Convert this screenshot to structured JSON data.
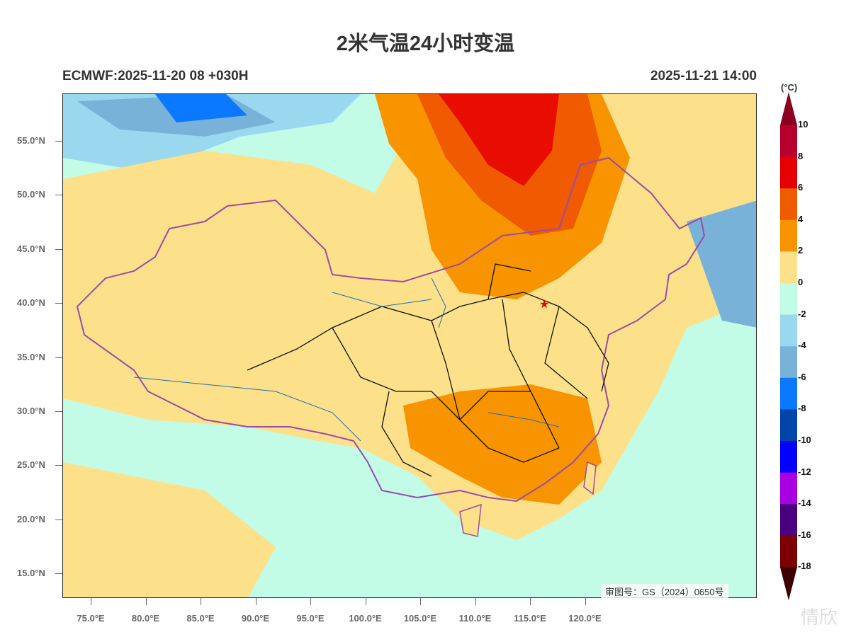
{
  "title": "2米气温24小时变温",
  "subtitle_left": "ECMWF:2025-11-20 08 +030H",
  "subtitle_right": "2025-11-21 14:00",
  "approval_number": "审图号：GS（2024）0650号",
  "y_ticks": [
    "55.0°N",
    "50.0°N",
    "45.0°N",
    "40.0°N",
    "35.0°N",
    "30.0°N",
    "25.0°N",
    "20.0°N",
    "15.0°N"
  ],
  "x_ticks": [
    "75.0°E",
    "80.0°E",
    "85.0°E",
    "90.0°E",
    "95.0°E",
    "100.0°E",
    "105.0°E",
    "110.0°E",
    "115.0°E",
    "120.0°E"
  ],
  "colorbar": {
    "unit": "(°C)",
    "labels": [
      "10",
      "8",
      "6",
      "4",
      "2",
      "0",
      "-2",
      "-4",
      "-6",
      "-8",
      "-10",
      "-12",
      "-14",
      "-16",
      "-18"
    ],
    "colors": [
      "#b8002e",
      "#e60000",
      "#f05a00",
      "#f79400",
      "#fde08a",
      "#c2fbe6",
      "#9ad8f0",
      "#79b2d9",
      "#0a78ff",
      "#0046aa",
      "#0000ff",
      "#a800e0",
      "#4b0080",
      "#7d0000"
    ],
    "over_color": "#8c0020",
    "under_color": "#3d0000"
  },
  "watermark": "情欣"
}
